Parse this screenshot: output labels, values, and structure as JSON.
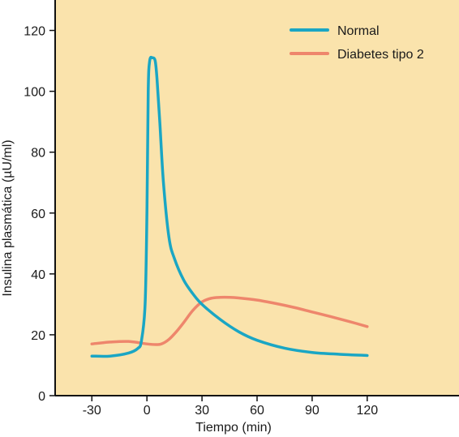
{
  "chart_data": {
    "type": "line",
    "title": "",
    "xlabel": "Tiempo (min)",
    "ylabel": "Insulina plasmática (µU/ml)",
    "xlim": [
      -50,
      170
    ],
    "ylim": [
      0,
      130
    ],
    "xticks": [
      -30,
      0,
      30,
      60,
      90,
      120
    ],
    "yticks": [
      0,
      20,
      40,
      60,
      80,
      100,
      120
    ],
    "xtick_labels": [
      "-30",
      "0",
      "30",
      "60",
      "90",
      "120"
    ],
    "ytick_labels": [
      "0",
      "20",
      "40",
      "60",
      "80",
      "100",
      "120"
    ],
    "grid": false,
    "legend_position": "top-right",
    "background_color": "#fae3ac",
    "series": [
      {
        "name": "Normal",
        "color": "#1aa6c4",
        "x": [
          -30,
          -20,
          -10,
          -5,
          -3,
          -1,
          0,
          0.7,
          1.5,
          3,
          4.5,
          5.5,
          7,
          9,
          12,
          15,
          20,
          25,
          30,
          40,
          50,
          60,
          75,
          90,
          105,
          120
        ],
        "y": [
          13,
          13,
          14,
          15.5,
          18,
          30,
          60,
          100,
          110,
          111,
          110,
          104,
          90,
          70,
          52,
          45,
          38,
          33.5,
          30,
          25,
          21,
          18.2,
          15.6,
          14.2,
          13.6,
          13.2
        ]
      },
      {
        "name": "Diabetes tipo 2",
        "color": "#ee866c",
        "x": [
          -30,
          -20,
          -10,
          0,
          5,
          8,
          12,
          16,
          20,
          25,
          30,
          35,
          40,
          45,
          50,
          60,
          70,
          80,
          90,
          100,
          110,
          120
        ],
        "y": [
          17,
          17.6,
          17.8,
          17,
          16.8,
          17,
          18.5,
          21,
          24,
          28,
          30.8,
          32,
          32.3,
          32.3,
          32.1,
          31.4,
          30.3,
          29,
          27.5,
          26,
          24.4,
          22.7
        ]
      }
    ]
  }
}
